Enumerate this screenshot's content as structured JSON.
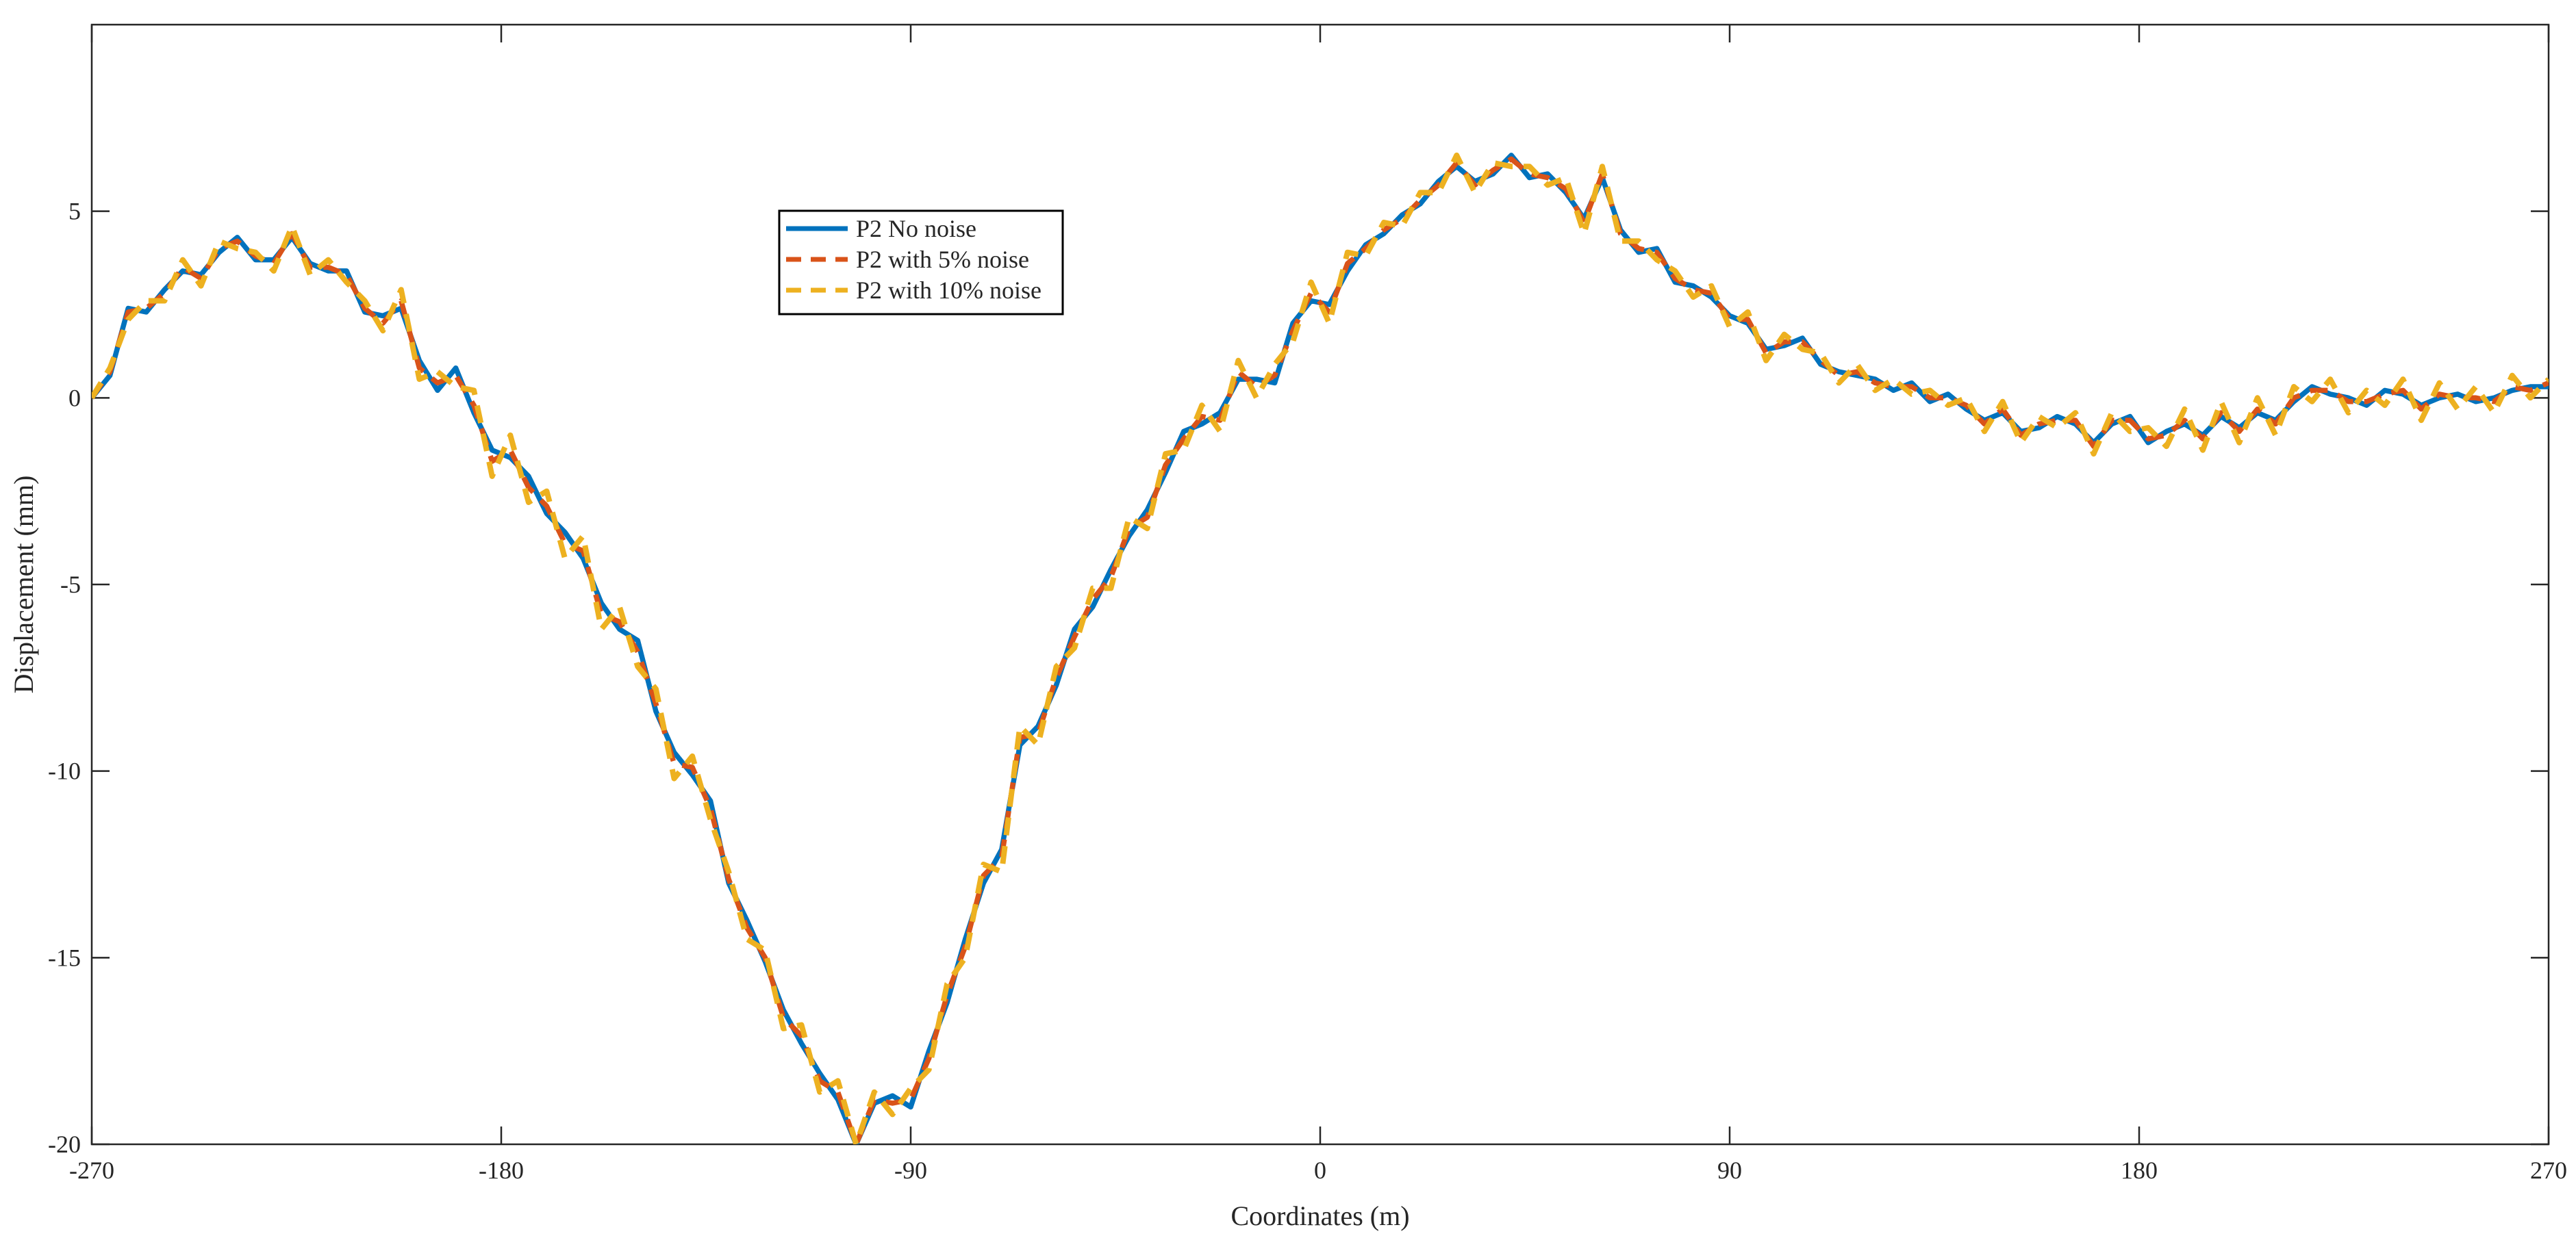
{
  "chart_data": {
    "type": "line",
    "title": "",
    "xlabel": "Coordinates (m)",
    "ylabel": "Displacement (mm)",
    "xlim": [
      -270,
      270
    ],
    "ylim": [
      -20,
      10
    ],
    "xticks": [
      -270,
      -180,
      -90,
      0,
      90,
      180,
      270
    ],
    "yticks": [
      -20,
      -15,
      -10,
      -5,
      0,
      5
    ],
    "xtick_labels": [
      "-270",
      "-180",
      "-90",
      "0",
      "90",
      "180",
      "270"
    ],
    "ytick_labels": [
      "-20",
      "-15",
      "-10",
      "-5",
      "0",
      "5"
    ],
    "grid": false,
    "legend_position": "upper-center-left",
    "series": [
      {
        "name": "P2 No noise",
        "color": "#0072BD",
        "dash": "solid",
        "x": [
          -270,
          -266,
          -262,
          -258,
          -254,
          -250,
          -246,
          -242,
          -238,
          -234,
          -230,
          -226,
          -222,
          -218,
          -214,
          -210,
          -206,
          -202,
          -198,
          -194,
          -190,
          -186,
          -182,
          -178,
          -174,
          -170,
          -166,
          -162,
          -158,
          -154,
          -150,
          -146,
          -142,
          -138,
          -134,
          -130,
          -126,
          -122,
          -118,
          -114,
          -110,
          -106,
          -102,
          -98,
          -94,
          -90,
          -86,
          -82,
          -78,
          -74,
          -70,
          -66,
          -62,
          -58,
          -54,
          -50,
          -46,
          -42,
          -38,
          -34,
          -30,
          -26,
          -22,
          -18,
          -14,
          -10,
          -6,
          -2,
          2,
          6,
          10,
          14,
          18,
          22,
          26,
          30,
          34,
          38,
          42,
          46,
          50,
          54,
          58,
          62,
          66,
          70,
          74,
          78,
          82,
          86,
          90,
          94,
          98,
          102,
          106,
          110,
          114,
          118,
          122,
          126,
          130,
          134,
          138,
          142,
          146,
          150,
          154,
          158,
          162,
          166,
          170,
          174,
          178,
          182,
          186,
          190,
          194,
          198,
          202,
          206,
          210,
          214,
          218,
          222,
          226,
          230,
          234,
          238,
          242,
          246,
          250,
          254,
          258,
          262,
          266,
          270
        ],
        "y": [
          0,
          0.6,
          2.4,
          2.3,
          2.9,
          3.4,
          3.3,
          3.9,
          4.3,
          3.7,
          3.7,
          4.3,
          3.6,
          3.4,
          3.4,
          2.3,
          2.2,
          2.4,
          1.0,
          0.2,
          0.8,
          -0.4,
          -1.4,
          -1.6,
          -2.1,
          -3.1,
          -3.6,
          -4.3,
          -5.5,
          -6.2,
          -6.5,
          -8.4,
          -9.5,
          -10.1,
          -10.8,
          -13.0,
          -14.0,
          -15.1,
          -16.4,
          -17.3,
          -18.1,
          -18.8,
          -20.0,
          -18.9,
          -18.7,
          -19.0,
          -17.5,
          -16.2,
          -14.5,
          -13.0,
          -12.1,
          -9.3,
          -8.8,
          -7.7,
          -6.2,
          -5.6,
          -4.6,
          -3.7,
          -3.0,
          -2.0,
          -0.9,
          -0.7,
          -0.4,
          0.5,
          0.5,
          0.4,
          2.0,
          2.6,
          2.5,
          3.4,
          4.1,
          4.4,
          4.9,
          5.2,
          5.8,
          6.2,
          5.8,
          6.0,
          6.5,
          5.9,
          6.0,
          5.5,
          4.8,
          5.9,
          4.5,
          3.9,
          4.0,
          3.1,
          3.0,
          2.7,
          2.2,
          2.0,
          1.3,
          1.4,
          1.6,
          0.9,
          0.7,
          0.6,
          0.5,
          0.2,
          0.4,
          -0.1,
          0.1,
          -0.3,
          -0.6,
          -0.4,
          -0.9,
          -0.8,
          -0.5,
          -0.7,
          -1.2,
          -0.7,
          -0.5,
          -1.2,
          -0.9,
          -0.7,
          -1.0,
          -0.5,
          -0.8,
          -0.4,
          -0.6,
          -0.1,
          0.3,
          0.1,
          0.0,
          -0.2,
          0.2,
          0.1,
          -0.2,
          0.0,
          0.1,
          -0.1,
          0.0,
          0.2,
          0.3,
          0.3
        ]
      },
      {
        "name": "P2 with 5% noise",
        "color": "#D95319",
        "dash": "dash",
        "x": [
          -270,
          -266,
          -262,
          -258,
          -254,
          -250,
          -246,
          -242,
          -238,
          -234,
          -230,
          -226,
          -222,
          -218,
          -214,
          -210,
          -206,
          -202,
          -198,
          -194,
          -190,
          -186,
          -182,
          -178,
          -174,
          -170,
          -166,
          -162,
          -158,
          -154,
          -150,
          -146,
          -142,
          -138,
          -134,
          -130,
          -126,
          -122,
          -118,
          -114,
          -110,
          -106,
          -102,
          -98,
          -94,
          -90,
          -86,
          -82,
          -78,
          -74,
          -70,
          -66,
          -62,
          -58,
          -54,
          -50,
          -46,
          -42,
          -38,
          -34,
          -30,
          -26,
          -22,
          -18,
          -14,
          -10,
          -6,
          -2,
          2,
          6,
          10,
          14,
          18,
          22,
          26,
          30,
          34,
          38,
          42,
          46,
          50,
          54,
          58,
          62,
          66,
          70,
          74,
          78,
          82,
          86,
          90,
          94,
          98,
          102,
          106,
          110,
          114,
          118,
          122,
          126,
          130,
          134,
          138,
          142,
          146,
          150,
          154,
          158,
          162,
          166,
          170,
          174,
          178,
          182,
          186,
          190,
          194,
          198,
          202,
          206,
          210,
          214,
          218,
          222,
          226,
          230,
          234,
          238,
          242,
          246,
          250,
          254,
          258,
          262,
          266,
          270
        ],
        "y": [
          0,
          0.7,
          2.3,
          2.4,
          2.8,
          3.5,
          3.2,
          4.0,
          4.2,
          3.8,
          3.6,
          4.4,
          3.5,
          3.5,
          3.3,
          2.4,
          2.0,
          2.6,
          0.8,
          0.4,
          0.6,
          -0.2,
          -1.7,
          -1.4,
          -2.4,
          -2.9,
          -3.9,
          -4.1,
          -5.8,
          -6.0,
          -6.8,
          -8.2,
          -9.8,
          -9.9,
          -11.0,
          -12.9,
          -14.2,
          -15.0,
          -16.6,
          -17.1,
          -18.3,
          -18.6,
          -20.0,
          -18.8,
          -18.9,
          -18.8,
          -17.7,
          -16.0,
          -14.7,
          -12.8,
          -12.3,
          -9.1,
          -9.0,
          -7.5,
          -6.4,
          -5.4,
          -4.8,
          -3.5,
          -3.2,
          -1.8,
          -1.1,
          -0.5,
          -0.6,
          0.7,
          0.3,
          0.6,
          1.8,
          2.8,
          2.3,
          3.6,
          4.0,
          4.5,
          4.8,
          5.3,
          5.7,
          6.3,
          5.7,
          6.1,
          6.4,
          6.0,
          5.9,
          5.6,
          4.7,
          6.0,
          4.4,
          4.0,
          3.9,
          3.2,
          2.9,
          2.8,
          2.1,
          2.1,
          1.2,
          1.5,
          1.5,
          1.0,
          0.6,
          0.7,
          0.4,
          0.3,
          0.3,
          0.0,
          0.0,
          -0.2,
          -0.7,
          -0.3,
          -1.0,
          -0.7,
          -0.6,
          -0.6,
          -1.3,
          -0.6,
          -0.6,
          -1.1,
          -1.0,
          -0.6,
          -1.1,
          -0.4,
          -0.9,
          -0.3,
          -0.7,
          0.0,
          0.2,
          0.2,
          -0.1,
          -0.1,
          0.1,
          0.2,
          -0.3,
          0.1,
          0.0,
          0.0,
          -0.1,
          0.3,
          0.2,
          0.4
        ]
      },
      {
        "name": "P2 with 10% noise",
        "color": "#EDB120",
        "dash": "dash",
        "x": [
          -270,
          -266,
          -262,
          -258,
          -254,
          -250,
          -246,
          -242,
          -238,
          -234,
          -230,
          -226,
          -222,
          -218,
          -214,
          -210,
          -206,
          -202,
          -198,
          -194,
          -190,
          -186,
          -182,
          -178,
          -174,
          -170,
          -166,
          -162,
          -158,
          -154,
          -150,
          -146,
          -142,
          -138,
          -134,
          -130,
          -126,
          -122,
          -118,
          -114,
          -110,
          -106,
          -102,
          -98,
          -94,
          -90,
          -86,
          -82,
          -78,
          -74,
          -70,
          -66,
          -62,
          -58,
          -54,
          -50,
          -46,
          -42,
          -38,
          -34,
          -30,
          -26,
          -22,
          -18,
          -14,
          -10,
          -6,
          -2,
          2,
          6,
          10,
          14,
          18,
          22,
          26,
          30,
          34,
          38,
          42,
          46,
          50,
          54,
          58,
          62,
          66,
          70,
          74,
          78,
          82,
          86,
          90,
          94,
          98,
          102,
          106,
          110,
          114,
          118,
          122,
          126,
          130,
          134,
          138,
          142,
          146,
          150,
          154,
          158,
          162,
          166,
          170,
          174,
          178,
          182,
          186,
          190,
          194,
          198,
          202,
          206,
          210,
          214,
          218,
          222,
          226,
          230,
          234,
          238,
          242,
          246,
          250,
          254,
          258,
          262,
          266,
          270
        ],
        "y": [
          0,
          0.8,
          2.1,
          2.6,
          2.6,
          3.7,
          3.0,
          4.2,
          4.0,
          3.9,
          3.4,
          4.6,
          3.3,
          3.7,
          3.1,
          2.6,
          1.8,
          2.9,
          0.5,
          0.7,
          0.3,
          0.2,
          -2.1,
          -1.0,
          -2.8,
          -2.5,
          -4.3,
          -3.7,
          -6.2,
          -5.6,
          -7.2,
          -7.8,
          -10.2,
          -9.6,
          -11.3,
          -12.7,
          -14.5,
          -14.8,
          -16.9,
          -16.8,
          -18.6,
          -18.3,
          -20.0,
          -18.6,
          -19.2,
          -18.5,
          -18.0,
          -15.7,
          -15.0,
          -12.5,
          -12.7,
          -8.8,
          -9.3,
          -7.2,
          -6.7,
          -5.1,
          -5.1,
          -3.2,
          -3.5,
          -1.5,
          -1.4,
          -0.2,
          -0.9,
          1.0,
          0.0,
          0.9,
          1.5,
          3.1,
          2.0,
          3.9,
          3.8,
          4.7,
          4.6,
          5.5,
          5.5,
          6.5,
          5.5,
          6.3,
          6.2,
          6.2,
          5.7,
          5.9,
          4.4,
          6.2,
          4.2,
          4.2,
          3.7,
          3.4,
          2.7,
          3.0,
          1.9,
          2.3,
          1.0,
          1.7,
          1.3,
          1.2,
          0.4,
          0.9,
          0.2,
          0.5,
          0.1,
          0.2,
          -0.2,
          0.0,
          -0.9,
          -0.1,
          -1.2,
          -0.5,
          -0.8,
          -0.4,
          -1.5,
          -0.4,
          -0.9,
          -0.8,
          -1.3,
          -0.3,
          -1.4,
          -0.1,
          -1.2,
          0.0,
          -1.0,
          0.3,
          -0.1,
          0.5,
          -0.4,
          0.2,
          -0.2,
          0.5,
          -0.6,
          0.4,
          -0.3,
          0.3,
          -0.4,
          0.6,
          0.0,
          0.5
        ]
      }
    ]
  }
}
